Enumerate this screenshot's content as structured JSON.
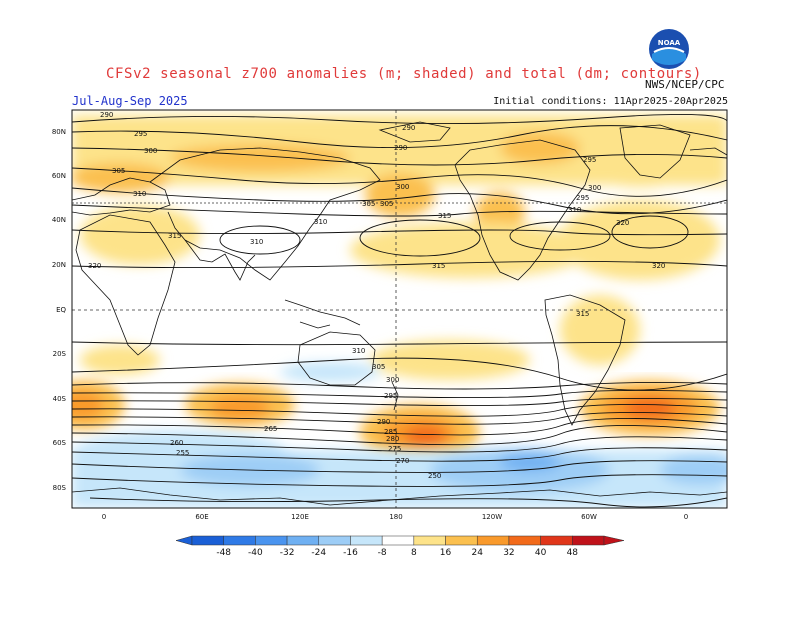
{
  "header": {
    "title": "CFSv2 seasonal z700 anomalies (m; shaded) and total (dm; contours)",
    "season": "Jul-Aug-Sep 2025",
    "initial_conditions": "Initial conditions: 11Apr2025-20Apr2025",
    "agency": "NWS/NCEP/CPC",
    "logo_text": "NOAA"
  },
  "map": {
    "lat_labels": [
      "80N",
      "60N",
      "40N",
      "20N",
      "EQ",
      "20S",
      "40S",
      "60S",
      "80S"
    ],
    "lon_labels": [
      "0",
      "60E",
      "120E",
      "180",
      "120W",
      "60W",
      "0"
    ],
    "contour_labels": [
      "290",
      "295",
      "300",
      "305",
      "310",
      "315",
      "320",
      "290",
      "295",
      "300",
      "305",
      "310",
      "315",
      "320",
      "310",
      "315",
      "320",
      "290",
      "295",
      "300",
      "305",
      "310",
      "315",
      "310",
      "305",
      "300",
      "295",
      "290",
      "285",
      "280",
      "275",
      "270",
      "265",
      "260",
      "255",
      "250"
    ],
    "colors": {
      "land": "#ffffff",
      "coast": "#111111",
      "contour": "#111111",
      "grid": "#555555"
    }
  },
  "colorbar": {
    "labels": [
      "-48",
      "-40",
      "-32",
      "-24",
      "-16",
      "-8",
      "8",
      "16",
      "24",
      "32",
      "40",
      "48"
    ],
    "colors": [
      "#1a5fd6",
      "#2f7ae6",
      "#4a94ef",
      "#6fb0f2",
      "#9dcdf6",
      "#c6e6fa",
      "#ffffff",
      "#fde38a",
      "#fbc04f",
      "#f99a2c",
      "#f26a1a",
      "#e0361a",
      "#c0121a"
    ]
  }
}
